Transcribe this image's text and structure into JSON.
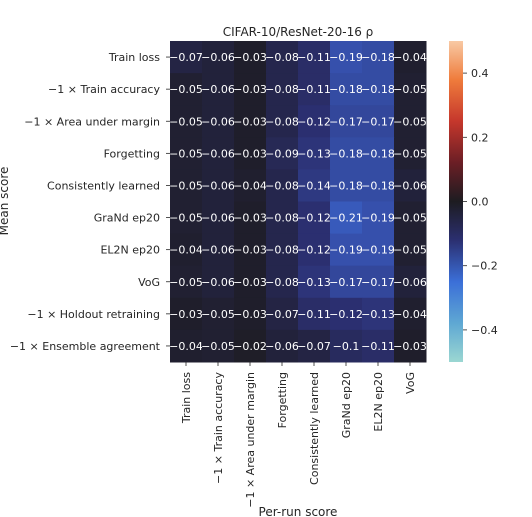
{
  "chart_data": {
    "type": "heatmap",
    "title": "CIFAR-10/ResNet-20-16 ρ",
    "xlabel": "Per-run score",
    "ylabel": "Mean score",
    "rows": [
      "Train loss",
      "−1 × Train accuracy",
      "−1 × Area under margin",
      "Forgetting",
      "Consistently learned",
      "GraNd ep20",
      "EL2N ep20",
      "VoG",
      "−1 × Holdout retraining",
      "−1 × Ensemble agreement"
    ],
    "columns": [
      "Train loss",
      "−1 × Train accuracy",
      "−1 × Area under margin",
      "Forgetting",
      "Consistently learned",
      "GraNd ep20",
      "EL2N ep20",
      "VoG"
    ],
    "values": [
      [
        -0.07,
        -0.06,
        -0.03,
        -0.08,
        -0.11,
        -0.19,
        -0.18,
        -0.04
      ],
      [
        -0.05,
        -0.06,
        -0.03,
        -0.08,
        -0.11,
        -0.18,
        -0.18,
        -0.05
      ],
      [
        -0.05,
        -0.06,
        -0.03,
        -0.08,
        -0.12,
        -0.17,
        -0.17,
        -0.05
      ],
      [
        -0.05,
        -0.06,
        -0.03,
        -0.09,
        -0.13,
        -0.18,
        -0.18,
        -0.05
      ],
      [
        -0.05,
        -0.06,
        -0.04,
        -0.08,
        -0.14,
        -0.18,
        -0.18,
        -0.06
      ],
      [
        -0.05,
        -0.06,
        -0.03,
        -0.08,
        -0.12,
        -0.21,
        -0.19,
        -0.05
      ],
      [
        -0.04,
        -0.06,
        -0.03,
        -0.08,
        -0.12,
        -0.19,
        -0.19,
        -0.05
      ],
      [
        -0.05,
        -0.06,
        -0.03,
        -0.08,
        -0.13,
        -0.17,
        -0.17,
        -0.06
      ],
      [
        -0.03,
        -0.05,
        -0.03,
        -0.07,
        -0.11,
        -0.12,
        -0.13,
        -0.04
      ],
      [
        -0.04,
        -0.05,
        -0.02,
        -0.06,
        -0.07,
        -0.1,
        -0.11,
        -0.03
      ]
    ],
    "colorbar": {
      "range": [
        -0.5,
        0.5
      ],
      "ticks": [
        0.4,
        0.2,
        0.0,
        -0.2,
        -0.4
      ],
      "tick_labels": [
        "0.4",
        "0.2",
        "0.0",
        "−0.2",
        "−0.4"
      ],
      "colormap": "icefire"
    }
  }
}
